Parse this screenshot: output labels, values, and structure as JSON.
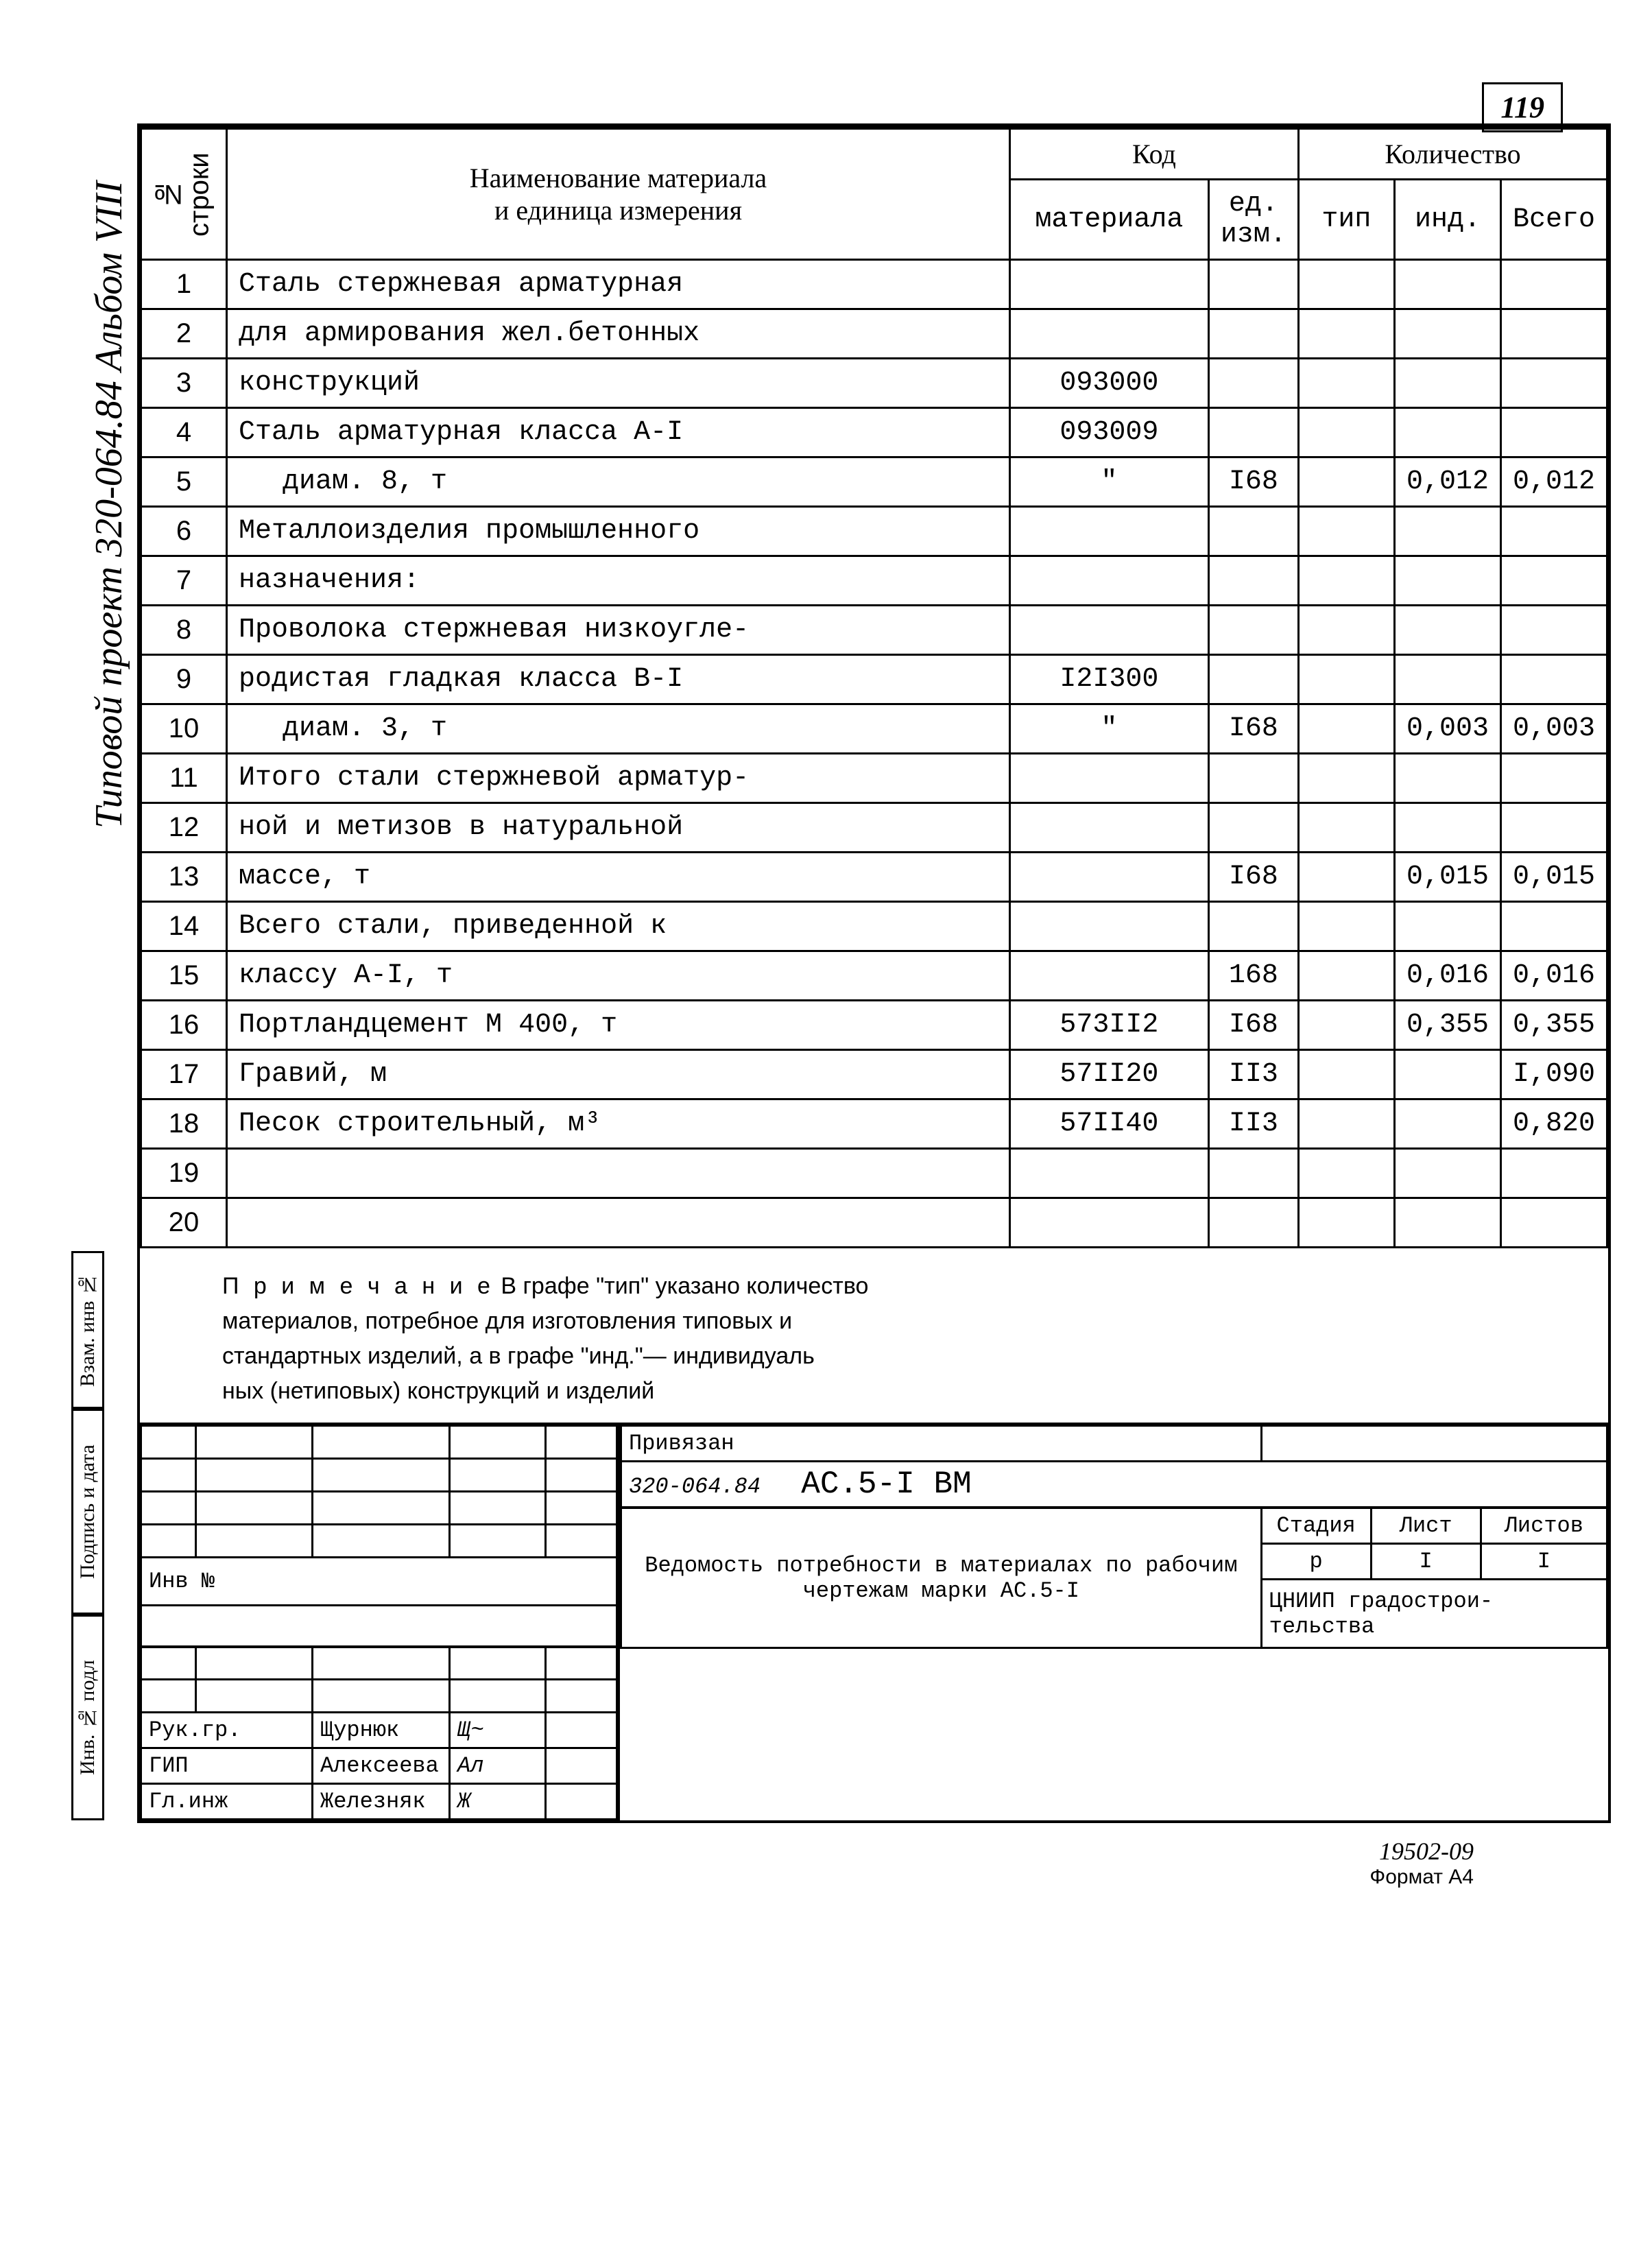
{
  "page_number": "119",
  "vertical_title": "Типовой проект 320-064.84 Альбом VIII",
  "sidebar": {
    "s1": "Взам. инв №",
    "s2": "Подпись и дата",
    "s3": "Инв. № подл"
  },
  "headers": {
    "num": "№ строки",
    "name_l1": "Наименование материала",
    "name_l2": "и единица измерения",
    "code": "Код",
    "code_mat": "материала",
    "code_unit": "ед. изм.",
    "qty": "Количество",
    "qty_typ": "тип",
    "qty_ind": "инд.",
    "qty_total": "Всего"
  },
  "rows": [
    {
      "n": "1",
      "name": "Сталь стержневая арматурная",
      "code": "",
      "unit": "",
      "typ": "",
      "ind": "",
      "tot": ""
    },
    {
      "n": "2",
      "name": "для армирования жел.бетонных",
      "code": "",
      "unit": "",
      "typ": "",
      "ind": "",
      "tot": ""
    },
    {
      "n": "3",
      "name": "конструкций",
      "code": "093000",
      "unit": "",
      "typ": "",
      "ind": "",
      "tot": ""
    },
    {
      "n": "4",
      "name": "Сталь арматурная класса А-I",
      "code": "093009",
      "unit": "",
      "typ": "",
      "ind": "",
      "tot": ""
    },
    {
      "n": "5",
      "name": "диам. 8, т",
      "indent": true,
      "code": "\"",
      "unit": "I68",
      "typ": "",
      "ind": "0,012",
      "tot": "0,012"
    },
    {
      "n": "6",
      "name": "Металлоизделия промышленного",
      "code": "",
      "unit": "",
      "typ": "",
      "ind": "",
      "tot": ""
    },
    {
      "n": "7",
      "name": "назначения:",
      "code": "",
      "unit": "",
      "typ": "",
      "ind": "",
      "tot": ""
    },
    {
      "n": "8",
      "name": "Проволока стержневая низкоугле-",
      "code": "",
      "unit": "",
      "typ": "",
      "ind": "",
      "tot": ""
    },
    {
      "n": "9",
      "name": "родистая гладкая класса В-I",
      "code": "I2I300",
      "unit": "",
      "typ": "",
      "ind": "",
      "tot": ""
    },
    {
      "n": "10",
      "name": "диам. 3, т",
      "indent": true,
      "code": "\"",
      "unit": "I68",
      "typ": "",
      "ind": "0,003",
      "tot": "0,003"
    },
    {
      "n": "11",
      "name": "Итого стали стержневой арматур-",
      "code": "",
      "unit": "",
      "typ": "",
      "ind": "",
      "tot": ""
    },
    {
      "n": "12",
      "name": "ной и метизов в натуральной",
      "code": "",
      "unit": "",
      "typ": "",
      "ind": "",
      "tot": ""
    },
    {
      "n": "13",
      "name": "массе, т",
      "code": "",
      "unit": "I68",
      "typ": "",
      "ind": "0,015",
      "tot": "0,015"
    },
    {
      "n": "14",
      "name": "Всего стали, приведенной к",
      "code": "",
      "unit": "",
      "typ": "",
      "ind": "",
      "tot": ""
    },
    {
      "n": "15",
      "name": "классу А-I, т",
      "code": "",
      "unit": "168",
      "typ": "",
      "ind": "0,016",
      "tot": "0,016"
    },
    {
      "n": "16",
      "name": "Портландцемент М 400, т",
      "code": "573II2",
      "unit": "I68",
      "typ": "",
      "ind": "0,355",
      "tot": "0,355"
    },
    {
      "n": "17",
      "name": "Гравий, м",
      "code": "57II20",
      "unit": "II3",
      "typ": "",
      "ind": "",
      "tot": "I,090"
    },
    {
      "n": "18",
      "name": "Песок строительный, м³",
      "code": "57II40",
      "unit": "II3",
      "typ": "",
      "ind": "",
      "tot": "0,820"
    },
    {
      "n": "19",
      "name": "",
      "code": "",
      "unit": "",
      "typ": "",
      "ind": "",
      "tot": ""
    },
    {
      "n": "20",
      "name": "",
      "code": "",
      "unit": "",
      "typ": "",
      "ind": "",
      "tot": ""
    }
  ],
  "note": {
    "label": "П р и м е ч а н и е",
    "text1": "В графе \"тип\" указано количество",
    "text2": "материалов, потребное для изготовления типовых и",
    "text3": "стандартных изделий, а в графе \"инд.\"— индивидуаль",
    "text4": "ных (нетиповых) конструкций и изделий"
  },
  "stamp": {
    "privyazan": "Привязан",
    "inv": "Инв №",
    "roles": {
      "r1": "Рук.гр.",
      "n1": "Щурнюк",
      "r2": "ГИП",
      "n2": "Алексеева",
      "r3": "Гл.инж",
      "n3": "Железняк"
    },
    "doc_code": "320-064.84",
    "doc_ac": "АС.5-I ВМ",
    "title": "Ведомость потребности в материалах по рабочим чертежам марки АС.5-I",
    "stage_h": "Стадия",
    "sheet_h": "Лист",
    "sheets_h": "Листов",
    "stage": "р",
    "sheet": "I",
    "sheets": "I",
    "org": "ЦНИИП градострои-\nтельства"
  },
  "footer": {
    "code": "19502-09",
    "format": "Формат А4"
  }
}
